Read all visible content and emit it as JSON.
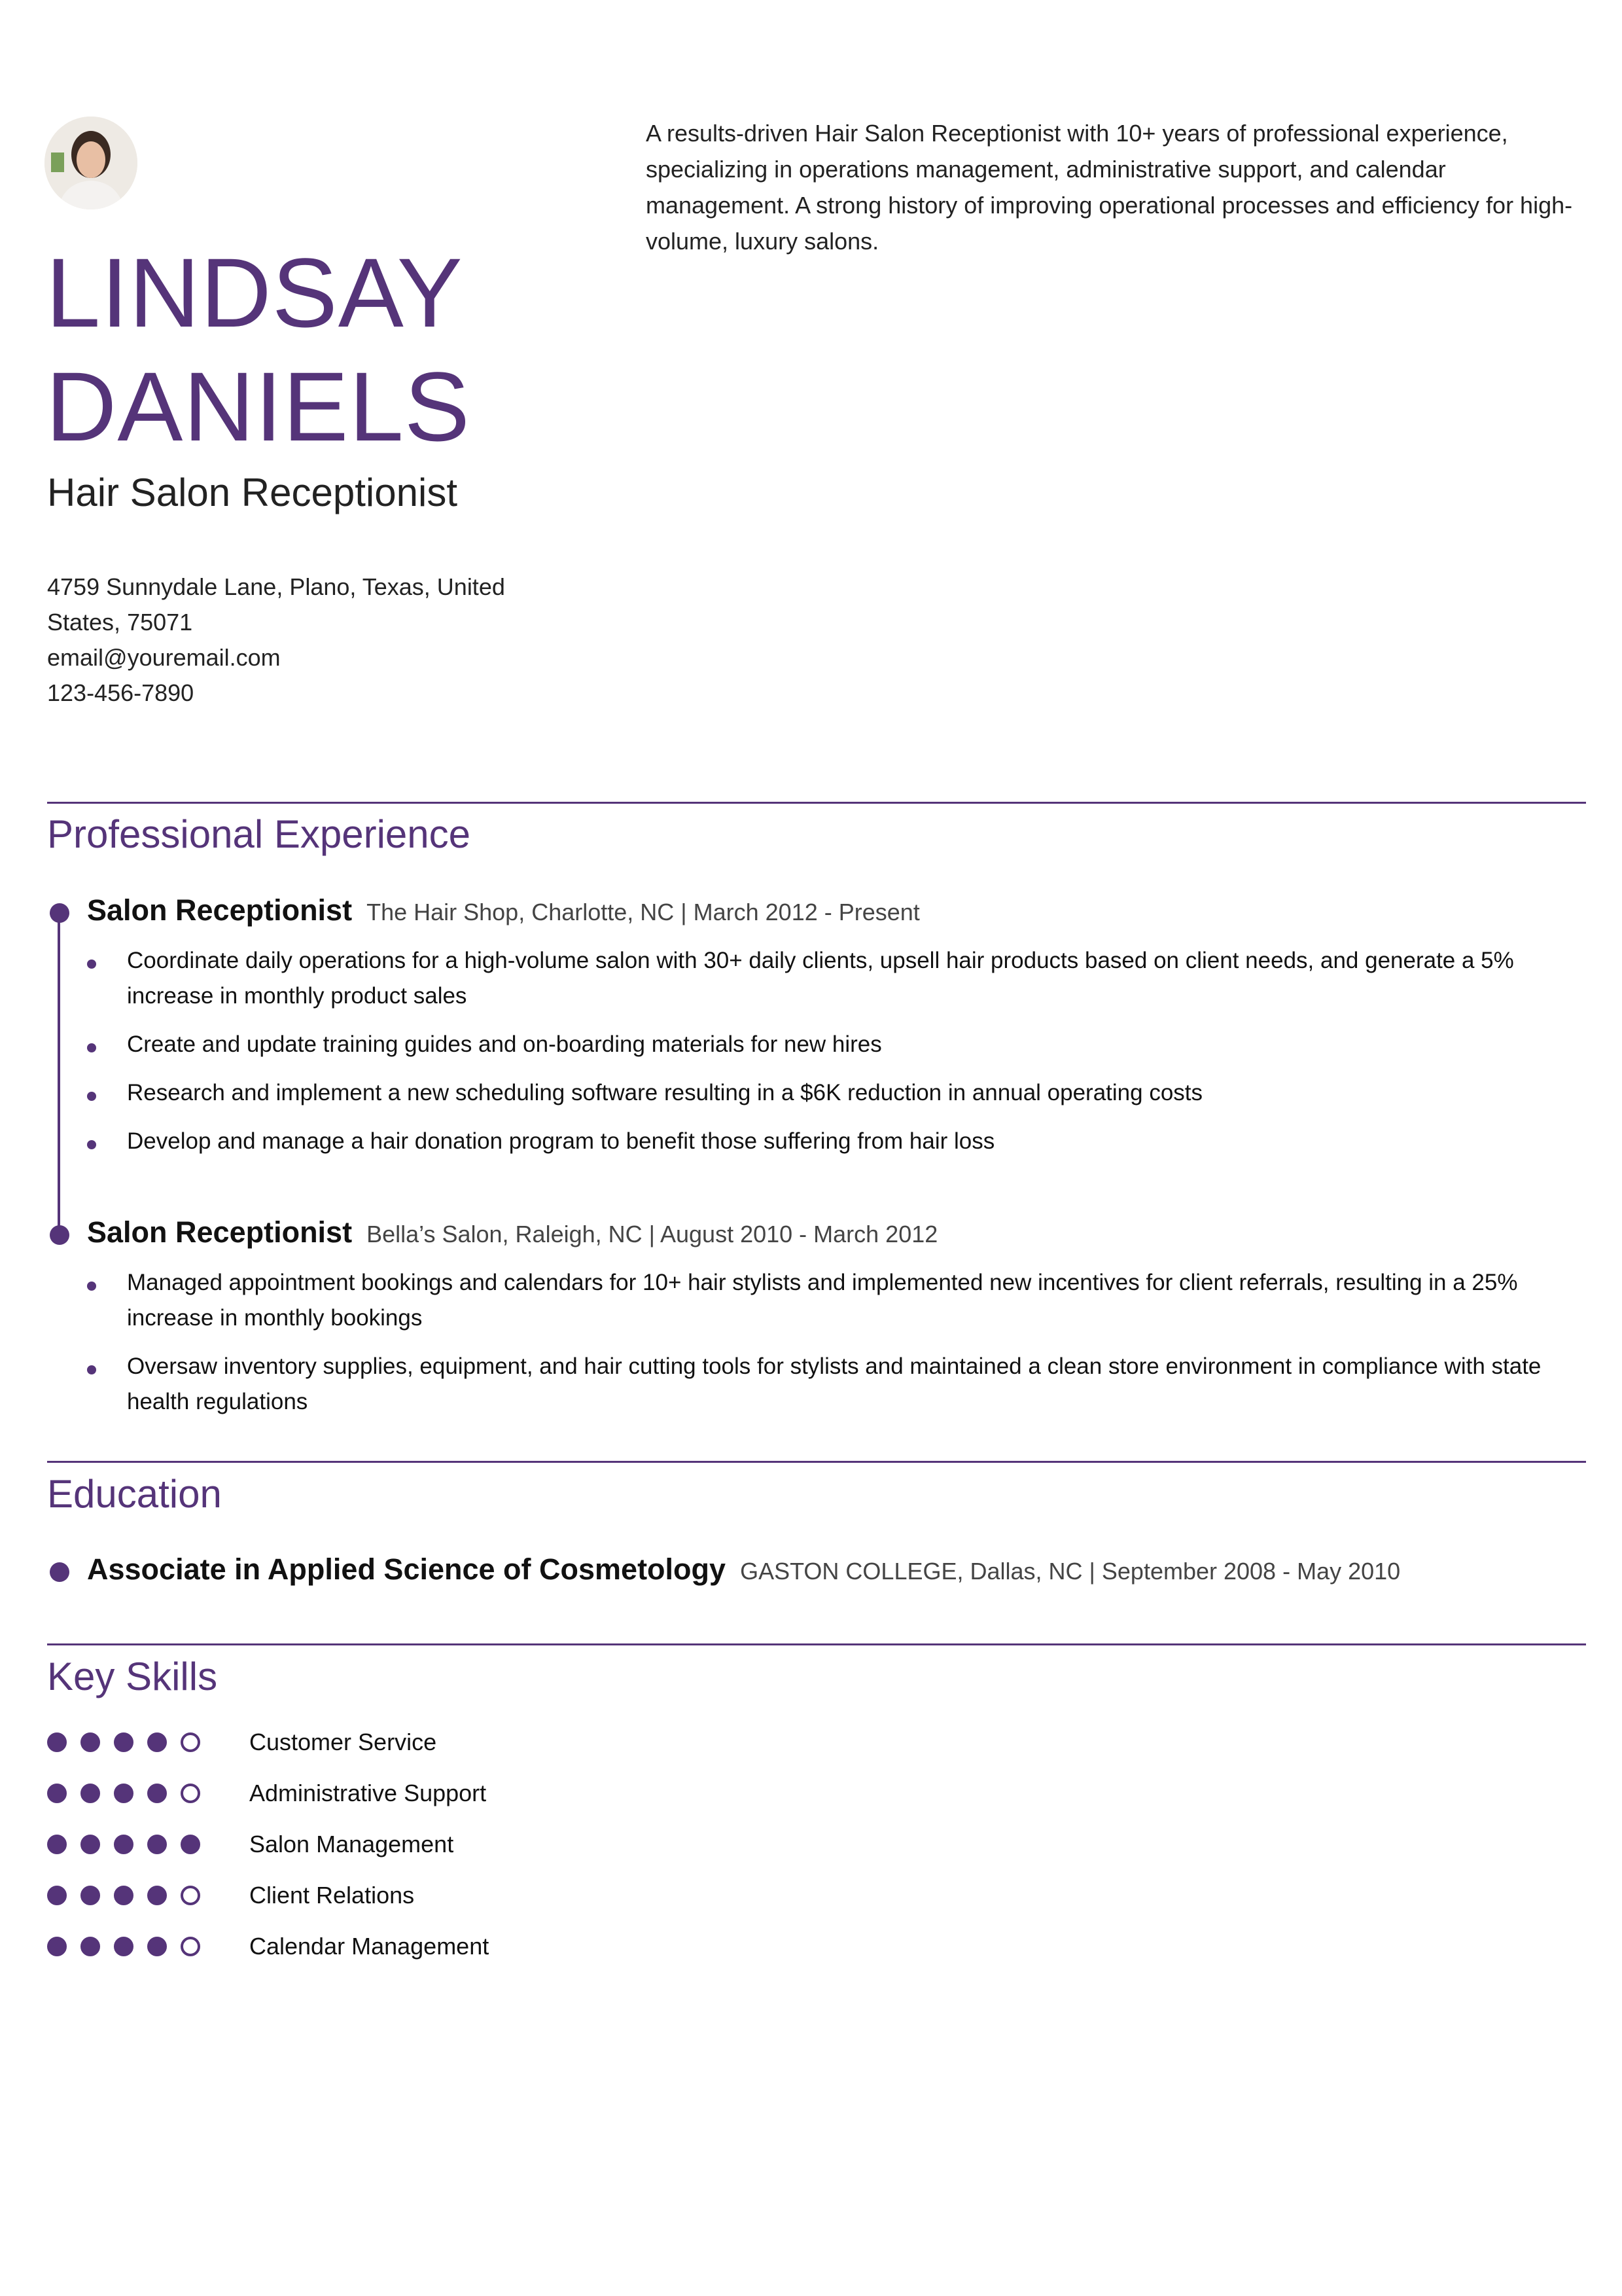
{
  "colors": {
    "accent": "#553479",
    "text": "#1e1e1e"
  },
  "header": {
    "name_line1": "LINDSAY",
    "name_line2": "DANIELS",
    "title": "Hair Salon Receptionist",
    "photo": "profile-photo",
    "address": "4759 Sunnydale Lane, Plano, Texas, United States, 75071",
    "email": "email@youremail.com",
    "phone": "123-456-7890",
    "summary": "A results-driven Hair Salon Receptionist with 10+ years of professional  experience, specializing in operations management, administrative  support, and calendar management. A strong history of improving  operational processes and efficiency for high-volume, luxury salons."
  },
  "experience": {
    "title": "Professional Experience",
    "jobs": [
      {
        "role": "Salon Receptionist",
        "meta": "The Hair Shop, Charlotte, NC | March 2012 - Present",
        "bullets": [
          "Coordinate daily operations for a high-volume salon with 30+ daily  clients, upsell hair products based on client needs, and generate a 5%  increase in monthly product sales",
          "Create and update training guides and on-boarding materials for new hires",
          "Research and implement a new scheduling software resulting in a $6K reduction in annual operating costs",
          "Develop and manage a hair donation program to benefit those suffering from hair loss"
        ]
      },
      {
        "role": "Salon Receptionist",
        "meta": "Bella’s Salon, Raleigh, NC | August 2010 - March 2012",
        "bullets": [
          "Managed appointment bookings and calendars for 10+ hair stylists and  implemented new incentives for client referrals, resulting in a 25%  increase in monthly bookings",
          "Oversaw inventory supplies, equipment, and hair cutting tools for  stylists and maintained a clean store environment in compliance with  state health regulations"
        ]
      }
    ]
  },
  "education": {
    "title": "Education",
    "degree": "Associate in Applied Science of Cosmetology",
    "meta": "GASTON COLLEGE, Dallas, NC | September 2008 - May 2010"
  },
  "skills": {
    "title": "Key Skills",
    "max": 5,
    "items": [
      {
        "label": "Customer Service",
        "level": 4
      },
      {
        "label": "Administrative Support",
        "level": 4
      },
      {
        "label": "Salon Management",
        "level": 5
      },
      {
        "label": "Client Relations",
        "level": 4
      },
      {
        "label": "Calendar Management",
        "level": 4
      }
    ]
  }
}
